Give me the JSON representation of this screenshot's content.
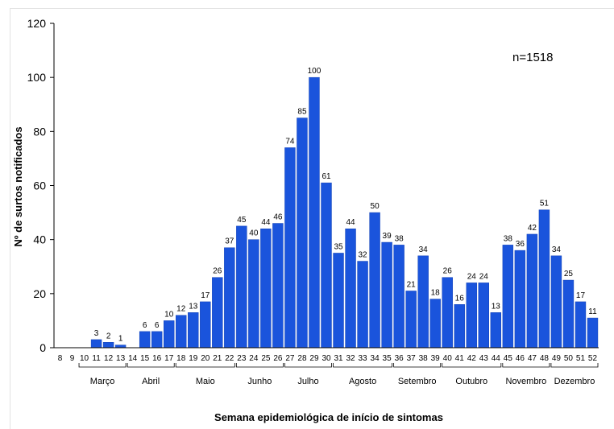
{
  "chart_data": {
    "type": "bar",
    "title": "",
    "annotation": "n=1518",
    "xlabel": "Semana epidemiológica de início de sintomas",
    "ylabel": "Nº de surtos notificados",
    "ylim": [
      0,
      120
    ],
    "yticks": [
      0,
      20,
      40,
      60,
      80,
      100,
      120
    ],
    "grid": false,
    "categories": [
      "8",
      "9",
      "10",
      "11",
      "12",
      "13",
      "14",
      "15",
      "16",
      "17",
      "18",
      "19",
      "20",
      "21",
      "22",
      "23",
      "24",
      "25",
      "26",
      "27",
      "28",
      "29",
      "30",
      "31",
      "32",
      "33",
      "34",
      "35",
      "36",
      "37",
      "38",
      "39",
      "40",
      "41",
      "42",
      "43",
      "44",
      "45",
      "46",
      "47",
      "48",
      "49",
      "50",
      "51",
      "52"
    ],
    "values": [
      null,
      null,
      null,
      3,
      2,
      1,
      null,
      6,
      6,
      10,
      12,
      13,
      17,
      26,
      37,
      45,
      40,
      44,
      46,
      74,
      85,
      100,
      61,
      35,
      44,
      32,
      50,
      39,
      38,
      21,
      34,
      18,
      26,
      16,
      24,
      24,
      13,
      38,
      36,
      42,
      51,
      34,
      25,
      17,
      11
    ],
    "months": [
      {
        "label": "Março",
        "from": "10",
        "to": "13"
      },
      {
        "label": "Abril",
        "from": "14",
        "to": "17"
      },
      {
        "label": "Maio",
        "from": "18",
        "to": "22"
      },
      {
        "label": "Junho",
        "from": "23",
        "to": "26"
      },
      {
        "label": "Julho",
        "from": "27",
        "to": "30"
      },
      {
        "label": "Agosto",
        "from": "31",
        "to": "35"
      },
      {
        "label": "Setembro",
        "from": "36",
        "to": "39"
      },
      {
        "label": "Outubro",
        "from": "40",
        "to": "44"
      },
      {
        "label": "Novembro",
        "from": "45",
        "to": "48"
      },
      {
        "label": "Dezembro",
        "from": "49",
        "to": "52"
      }
    ]
  },
  "colors": {
    "bar": "#1a54dc",
    "axis": "#000000"
  }
}
